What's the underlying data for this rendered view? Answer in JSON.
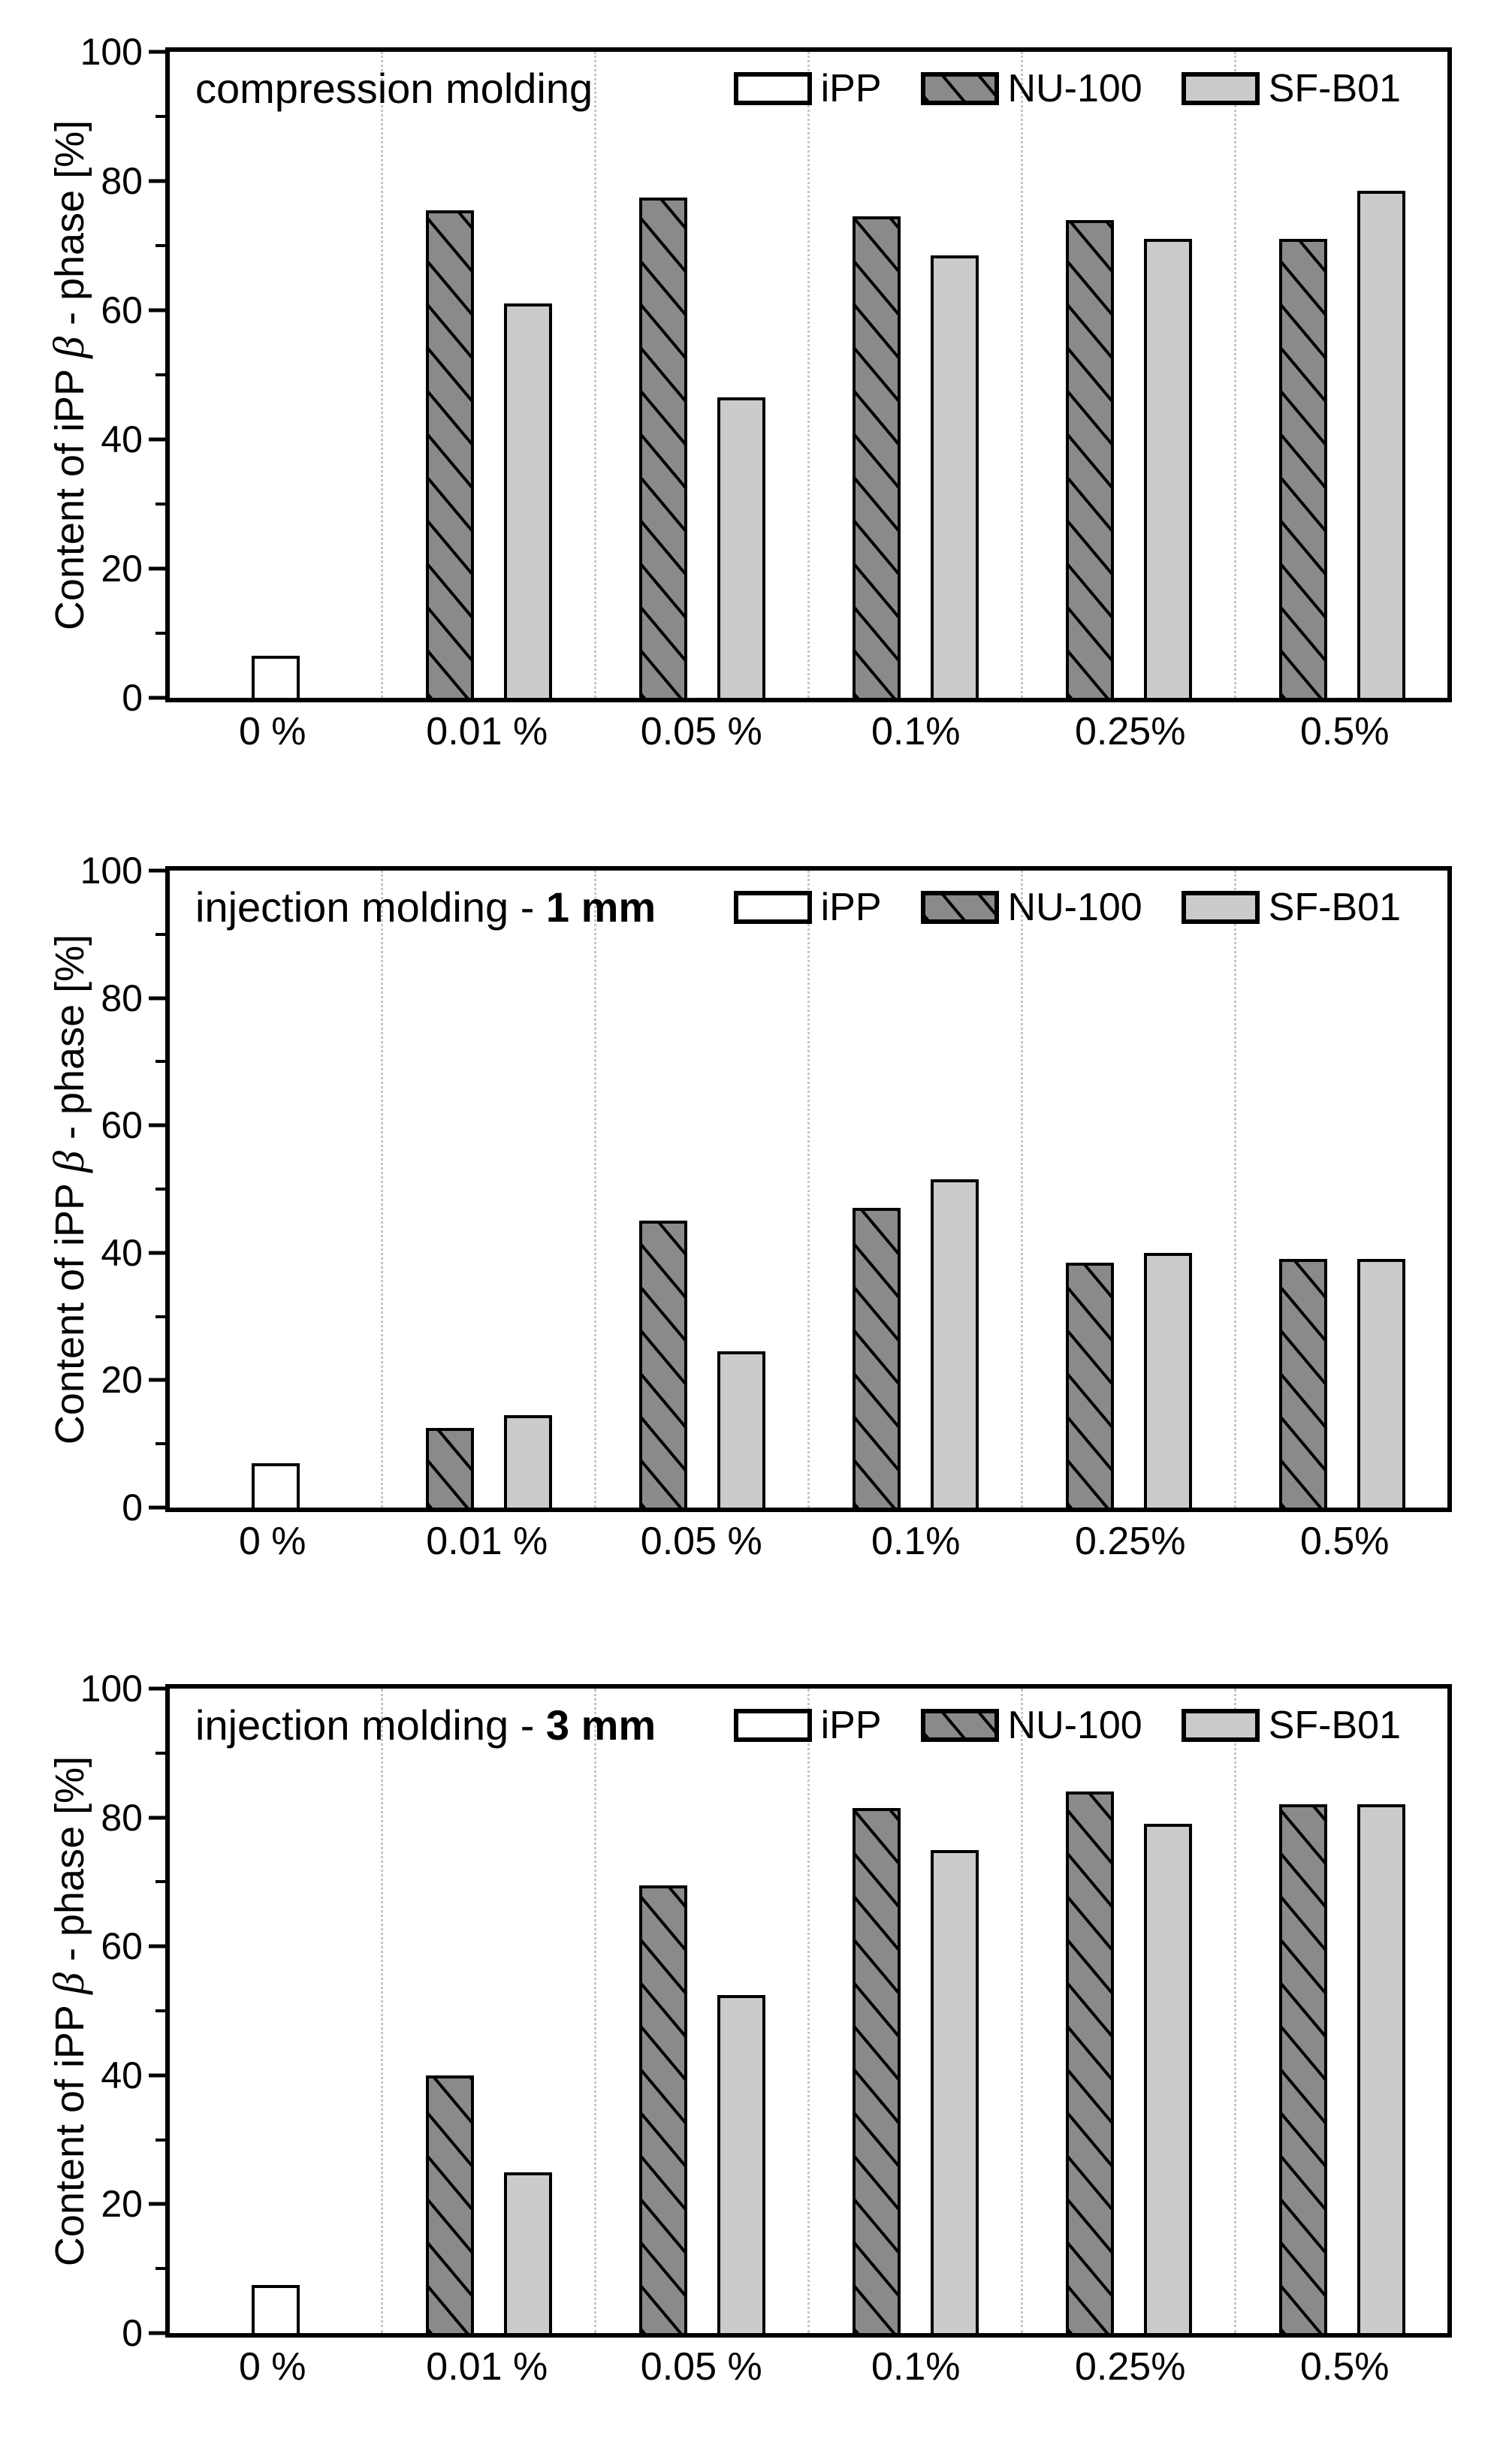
{
  "figure": {
    "background": "#ffffff",
    "frame_color": "#000000",
    "gridline_color": "#c6c6c6",
    "gridline_style": "dotted-vertical"
  },
  "axis": {
    "ylabel": {
      "prefix": "Content of iPP ",
      "beta": "β",
      "suffix": " - phase [%]"
    },
    "yticks": [
      0,
      20,
      40,
      60,
      80,
      100
    ],
    "yminor": [
      10,
      30,
      50,
      70,
      90
    ],
    "ylim": [
      0,
      100
    ],
    "categories": [
      "0 %",
      "0.01 %",
      "0.05 %",
      "0.1%",
      "0.25%",
      "0.5%"
    ]
  },
  "legend": {
    "position": "top-right",
    "items": [
      {
        "label": "iPP",
        "series": "ipp",
        "fill": "#ffffff",
        "hatch": false
      },
      {
        "label": "NU-100",
        "series": "nu100",
        "fill": "#8a8a8a",
        "hatch": true
      },
      {
        "label": "SF-B01",
        "series": "sfb01",
        "fill": "#cbcbcb",
        "hatch": false
      }
    ]
  },
  "charts": [
    {
      "title_plain": "compression molding",
      "title_bold": ""
    },
    {
      "title_plain": "injection molding - ",
      "title_bold": "1 mm"
    },
    {
      "title_plain": "injection molding - ",
      "title_bold": "3 mm"
    }
  ],
  "chart_data": [
    {
      "type": "bar",
      "title": "compression molding",
      "categories": [
        "0 %",
        "0.01 %",
        "0.05 %",
        "0.1%",
        "0.25%",
        "0.5%"
      ],
      "series": [
        {
          "name": "iPP",
          "values": [
            6.5,
            null,
            null,
            null,
            null,
            null
          ]
        },
        {
          "name": "NU-100",
          "values": [
            null,
            75.5,
            77.5,
            74.5,
            74,
            71
          ]
        },
        {
          "name": "SF-B01",
          "values": [
            null,
            61,
            46.5,
            68.5,
            71,
            78.5
          ]
        }
      ],
      "xlabel": "",
      "ylabel": "Content of iPP β - phase [%]",
      "ylim": [
        0,
        100
      ],
      "grid": "vertical dotted between categories",
      "legend_position": "top-right"
    },
    {
      "type": "bar",
      "title": "injection molding - 1 mm",
      "categories": [
        "0 %",
        "0.01 %",
        "0.05 %",
        "0.1%",
        "0.25%",
        "0.5%"
      ],
      "series": [
        {
          "name": "iPP",
          "values": [
            7,
            null,
            null,
            null,
            null,
            null
          ]
        },
        {
          "name": "NU-100",
          "values": [
            null,
            12.5,
            45,
            47,
            38.5,
            39
          ]
        },
        {
          "name": "SF-B01",
          "values": [
            null,
            14.5,
            24.5,
            51.5,
            40,
            39
          ]
        }
      ],
      "xlabel": "",
      "ylabel": "Content of iPP β - phase [%]",
      "ylim": [
        0,
        100
      ],
      "grid": "vertical dotted between categories",
      "legend_position": "top-right"
    },
    {
      "type": "bar",
      "title": "injection molding - 3 mm",
      "categories": [
        "0 %",
        "0.01 %",
        "0.05 %",
        "0.1%",
        "0.25%",
        "0.5%"
      ],
      "series": [
        {
          "name": "iPP",
          "values": [
            7.5,
            null,
            null,
            null,
            null,
            null
          ]
        },
        {
          "name": "NU-100",
          "values": [
            null,
            40,
            69.5,
            81.5,
            84,
            82
          ]
        },
        {
          "name": "SF-B01",
          "values": [
            null,
            25,
            52.5,
            75,
            79,
            82
          ]
        }
      ],
      "xlabel": "",
      "ylabel": "Content of iPP β - phase [%]",
      "ylim": [
        0,
        100
      ],
      "grid": "vertical dotted between categories",
      "legend_position": "top-right"
    }
  ]
}
